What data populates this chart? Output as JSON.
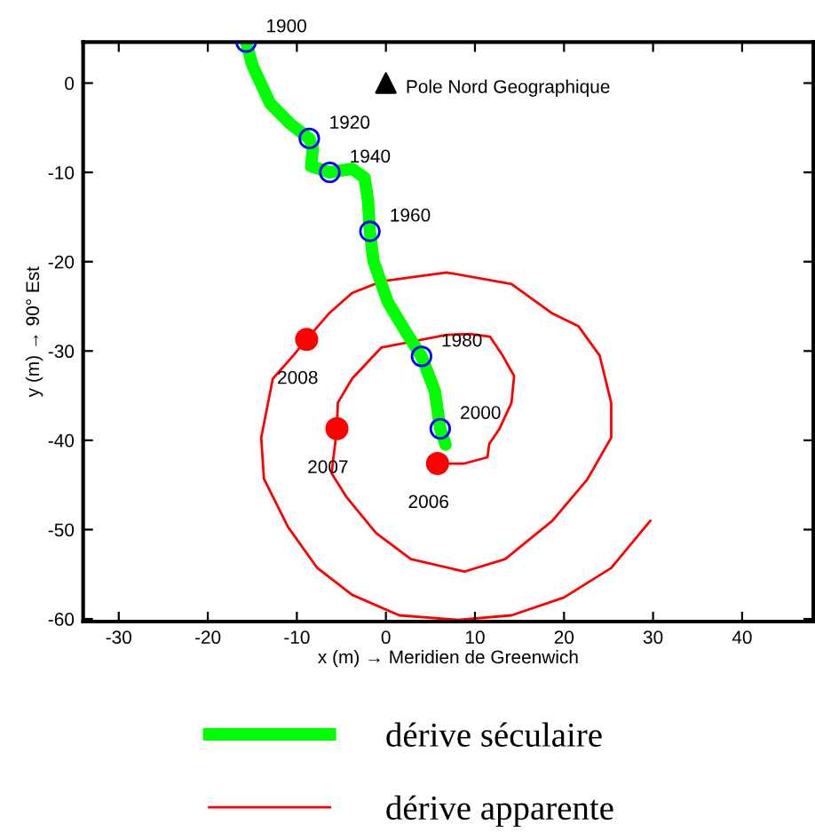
{
  "chart_data": {
    "type": "line",
    "xlabel": "x (m) → Meridien de Greenwich",
    "ylabel": "y (m) → 90° Est",
    "xlim": [
      -34,
      48
    ],
    "ylim": [
      -60.3,
      4.6
    ],
    "xticks": [
      -30,
      -20,
      -10,
      0,
      10,
      20,
      30,
      40
    ],
    "yticks": [
      -60,
      -50,
      -40,
      -30,
      -20,
      -10,
      0
    ],
    "grid": false,
    "legend": "bottom",
    "series": [
      {
        "name": "dérive séculaire",
        "color": "#00ff00",
        "marker": "none",
        "x": [
          -15.7,
          -15.0,
          -13.0,
          -10.7,
          -8.6,
          -8.2,
          -8.4,
          -6.3,
          -3.8,
          -2.4,
          -2.0,
          -1.8,
          -1.4,
          0.2,
          2.2,
          4.0,
          5.5,
          6.1,
          6.7
        ],
        "values": [
          4.6,
          2.0,
          -2.3,
          -4.6,
          -6.2,
          -7.3,
          -9.3,
          -10.0,
          -9.6,
          -10.6,
          -13.2,
          -16.6,
          -19.9,
          -24.5,
          -27.8,
          -30.6,
          -34.5,
          -38.7,
          -40.5
        ]
      },
      {
        "name": "dérive apparente",
        "color": "#ff0000",
        "marker": "none",
        "x": [
          5.8,
          8.8,
          11.4,
          11.6,
          12.7,
          14.1,
          14.4,
          13.1,
          11.7,
          9.4,
          6.8,
          -0.5,
          -3.8,
          -5.4,
          -5.5,
          -6.1,
          -4.4,
          -1.1,
          2.8,
          8.8,
          13.4,
          18.7,
          22.6,
          25.3,
          25.3,
          24.0,
          21.6,
          18.7,
          14.1,
          6.8,
          -0.5,
          -3.8,
          -6.4,
          -8.9,
          -10.4,
          -12.7,
          -14.0,
          -13.7,
          -11.0,
          -7.7,
          -3.8,
          1.5,
          8.1,
          14.1,
          20.0,
          25.3,
          29.7
        ],
        "values": [
          -42.6,
          -42.6,
          -41.9,
          -40.4,
          -38.8,
          -35.8,
          -32.8,
          -30.5,
          -28.4,
          -28.1,
          -28.2,
          -29.6,
          -33.1,
          -35.8,
          -38.7,
          -43.7,
          -46.4,
          -50.4,
          -53.3,
          -54.7,
          -53.3,
          -49.0,
          -44.4,
          -39.7,
          -35.8,
          -30.5,
          -27.2,
          -25.8,
          -22.5,
          -21.2,
          -22.2,
          -23.5,
          -25.8,
          -28.7,
          -30.5,
          -33.1,
          -39.7,
          -44.3,
          -49.7,
          -54.3,
          -57.3,
          -59.6,
          -60.1,
          -59.6,
          -57.6,
          -54.3,
          -49.0
        ]
      },
      {
        "type": "scatter",
        "color": "#0000ff",
        "marker": "circle",
        "x": [
          -15.7,
          -8.6,
          -6.3,
          -1.8,
          4.0,
          6.1
        ],
        "values": [
          4.6,
          -6.2,
          -10.0,
          -16.6,
          -30.6,
          -38.7
        ]
      },
      {
        "type": "scatter",
        "color": "#ff0000",
        "marker": "circle",
        "x": [
          5.8,
          -5.5,
          -8.9
        ],
        "values": [
          -42.6,
          -38.7,
          -28.7
        ]
      },
      {
        "type": "scatter",
        "color": "#000000",
        "marker": "triangle",
        "x": [
          0
        ],
        "values": [
          0
        ]
      }
    ],
    "annotations": [
      {
        "text": "1900",
        "x": -15.7,
        "y": 4.6
      },
      {
        "text": "1920",
        "x": -8.6,
        "y": -6.2
      },
      {
        "text": "1940",
        "x": -6.3,
        "y": -10.0
      },
      {
        "text": "1960",
        "x": -1.8,
        "y": -16.6
      },
      {
        "text": "1980",
        "x": 4.0,
        "y": -30.6
      },
      {
        "text": "2000",
        "x": 6.1,
        "y": -38.7
      },
      {
        "text": "2006",
        "x": 5.8,
        "y": -42.6
      },
      {
        "text": "2007",
        "x": -5.5,
        "y": -38.7
      },
      {
        "text": "2008",
        "x": -8.9,
        "y": -28.7
      },
      {
        "text": "Pole Nord Geographique",
        "x": 0,
        "y": 0
      }
    ]
  }
}
